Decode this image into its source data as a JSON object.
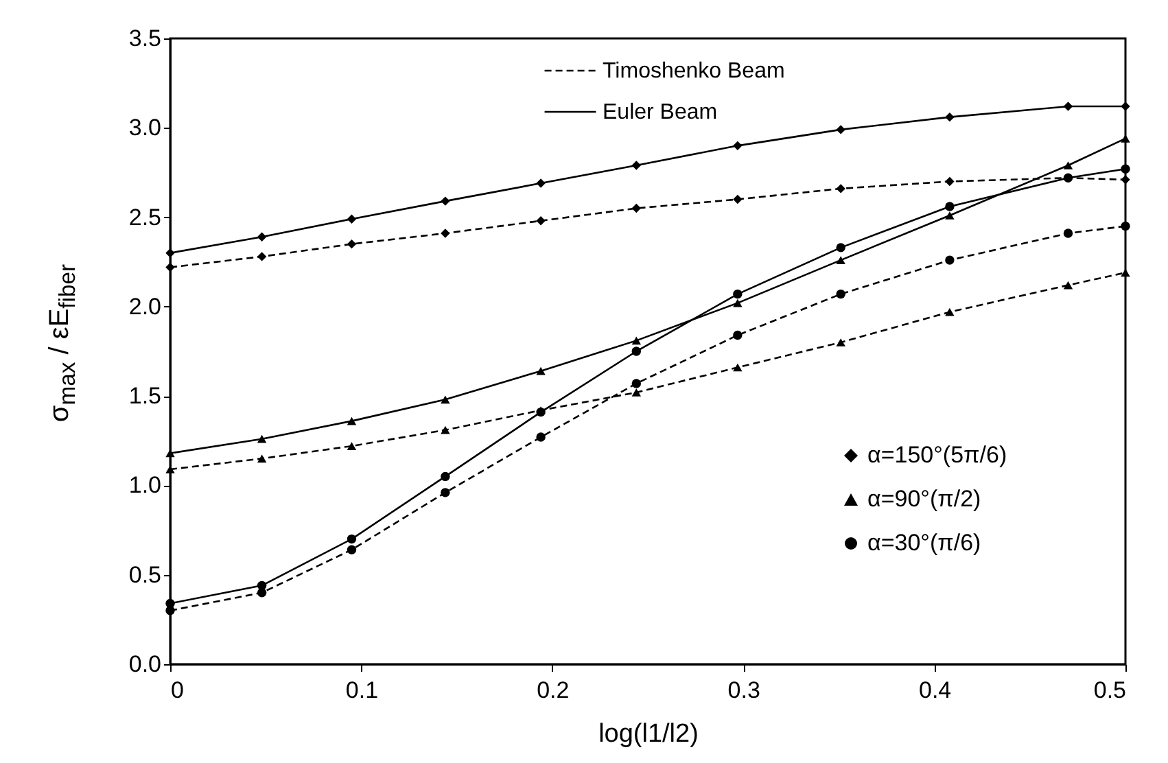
{
  "chart_data": {
    "type": "line",
    "xlabel": "log(l1/l2)",
    "ylabel": "σ$_{max}$ / εE$_{fiber}$",
    "x": [
      0,
      0.048,
      0.095,
      0.144,
      0.194,
      0.244,
      0.297,
      0.351,
      0.408,
      0.47,
      0.5
    ],
    "series": [
      {
        "name": "Timoshenko Beam",
        "color": "#000000",
        "line_style": "dashed",
        "marker": "diamond",
        "values": [
          2.22,
          2.28,
          2.35,
          2.41,
          2.48,
          2.55,
          2.6,
          2.66,
          2.7,
          2.72,
          2.71
        ]
      },
      {
        "name": "Euler Beam",
        "color": "#000000",
        "line_style": "solid",
        "marker": "diamond",
        "values": [
          2.3,
          2.39,
          2.49,
          2.59,
          2.69,
          2.79,
          2.9,
          2.99,
          3.06,
          3.12,
          3.12
        ]
      },
      {
        "color": "#000000",
        "line_style": "dashed",
        "marker": "triangle",
        "values": [
          1.09,
          1.15,
          1.22,
          1.31,
          1.42,
          1.52,
          1.66,
          1.8,
          1.97,
          2.12,
          2.19
        ]
      },
      {
        "color": "#000000",
        "line_style": "solid",
        "marker": "triangle",
        "values": [
          1.18,
          1.26,
          1.36,
          1.48,
          1.64,
          1.81,
          2.02,
          2.26,
          2.51,
          2.79,
          2.94
        ]
      },
      {
        "color": "#000000",
        "line_style": "dashed",
        "marker": "circle",
        "values": [
          0.3,
          0.4,
          0.64,
          0.96,
          1.27,
          1.57,
          1.84,
          2.07,
          2.26,
          2.41,
          2.45
        ]
      },
      {
        "color": "#000000",
        "line_style": "solid",
        "marker": "circle",
        "values": [
          0.34,
          0.44,
          0.7,
          1.05,
          1.41,
          1.75,
          2.07,
          2.33,
          2.56,
          2.72,
          2.77
        ]
      }
    ],
    "annotations": [
      "α=150°(5π/6)",
      "α=90°(π/2)",
      "α=30°(π/6)"
    ],
    "xlim": [
      0,
      0.5
    ],
    "xticks": [
      0,
      0.1,
      0.2,
      0.3,
      0.4,
      0.5
    ],
    "ylim": [
      0,
      3.5
    ],
    "yticks": [
      {
        "value": 0,
        "label": "0.0"
      },
      {
        "value": 0.5,
        "label": "0.5"
      },
      {
        "value": 1,
        "label": "1.0"
      },
      {
        "value": 1.5,
        "label": "1.5"
      },
      {
        "value": 2,
        "label": "2.0"
      },
      {
        "value": 2.5,
        "label": "2.5"
      },
      {
        "value": 3,
        "label": "3.0"
      },
      {
        "value": 3.5,
        "label": "3.5"
      }
    ],
    "legend": "top right",
    "grid": false
  }
}
